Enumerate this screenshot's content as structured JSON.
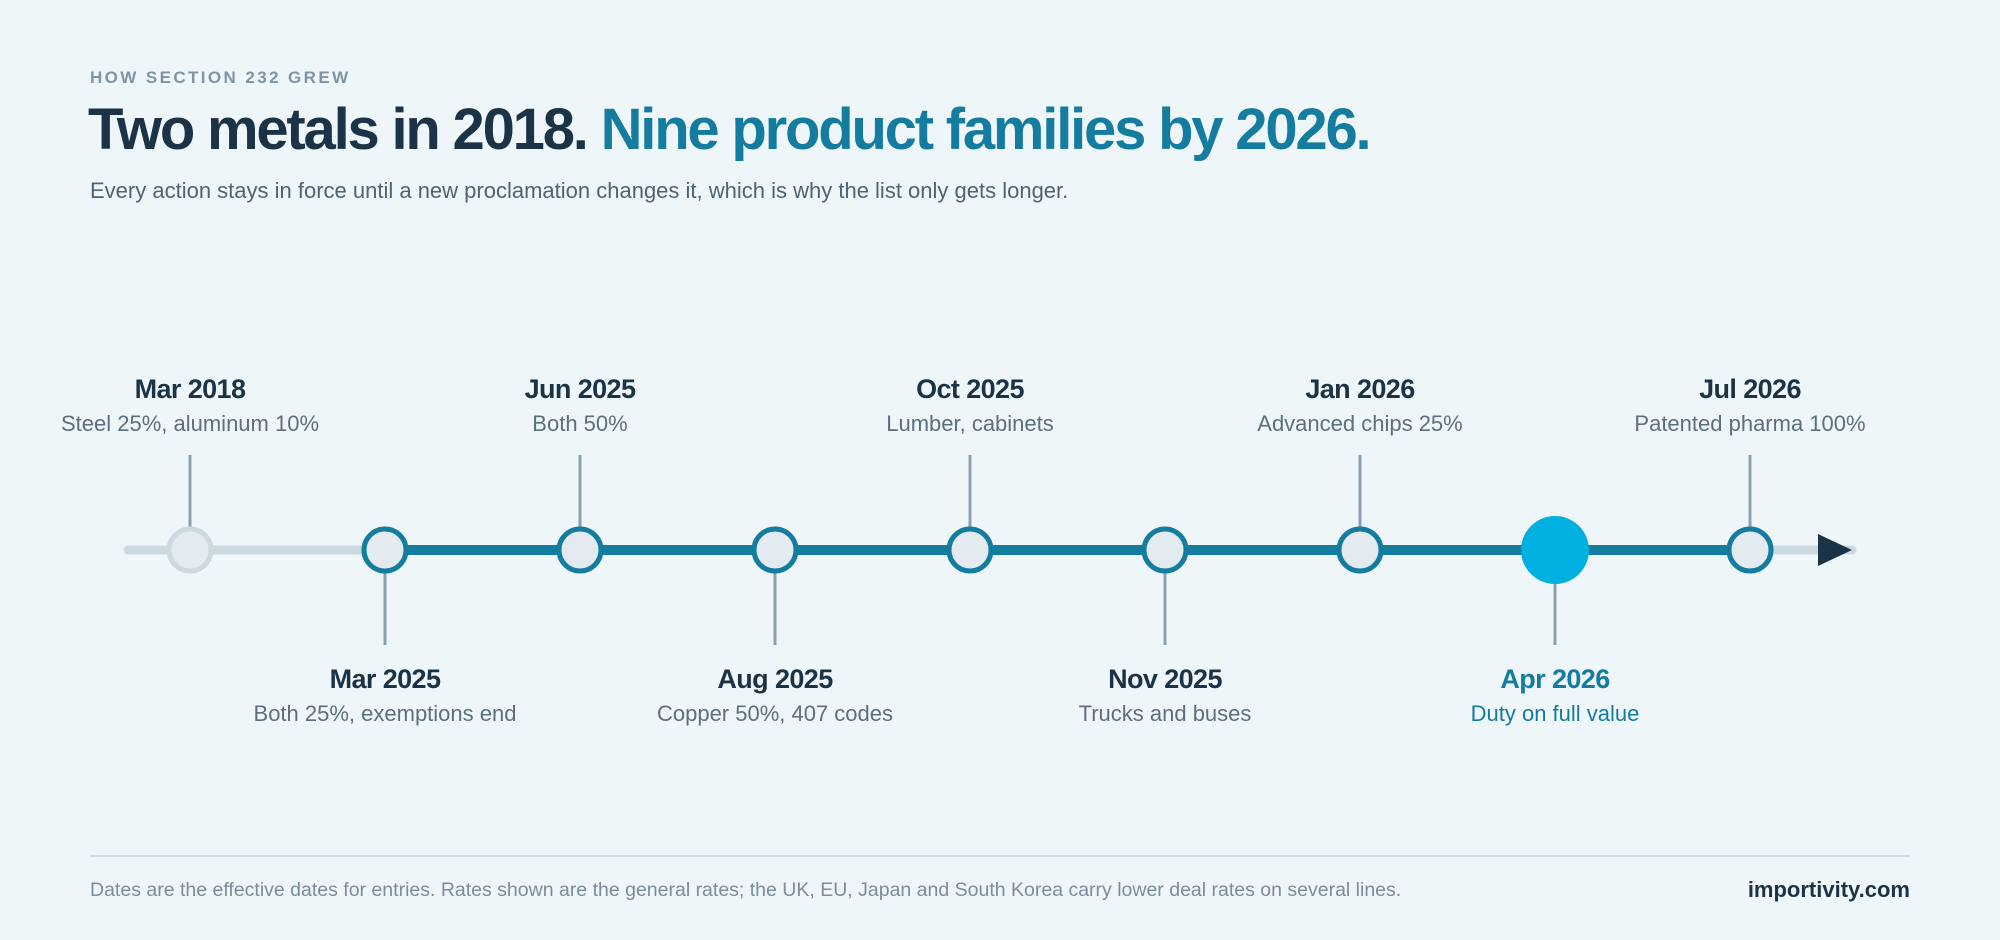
{
  "header": {
    "eyebrow": "HOW SECTION 232 GREW",
    "title_part1": "Two metals in 2018.",
    "title_part2": "Nine product families by 2026.",
    "subtitle": "Every action stays in force until a new proclamation changes it, which is why the list only gets longer."
  },
  "timeline": {
    "events": [
      {
        "date": "Mar 2018",
        "desc": "Steel 25%, aluminum 10%",
        "placement": "above",
        "state": "past"
      },
      {
        "date": "Mar 2025",
        "desc": "Both 25%, exemptions end",
        "placement": "below",
        "state": "active"
      },
      {
        "date": "Jun 2025",
        "desc": "Both 50%",
        "placement": "above",
        "state": "active"
      },
      {
        "date": "Aug 2025",
        "desc": "Copper 50%, 407 codes",
        "placement": "below",
        "state": "active"
      },
      {
        "date": "Oct 2025",
        "desc": "Lumber, cabinets",
        "placement": "above",
        "state": "active"
      },
      {
        "date": "Nov 2025",
        "desc": "Trucks and buses",
        "placement": "below",
        "state": "active"
      },
      {
        "date": "Jan 2026",
        "desc": "Advanced chips 25%",
        "placement": "above",
        "state": "active"
      },
      {
        "date": "Apr 2026",
        "desc": "Duty on full value",
        "placement": "below",
        "state": "highlight"
      },
      {
        "date": "Jul 2026",
        "desc": "Patented pharma 100%",
        "placement": "above",
        "state": "active"
      }
    ]
  },
  "colors": {
    "inactive_track": "#cdd9e0",
    "active_track": "#147c9f",
    "node_fill": "#e3eaf0",
    "highlight_node": "#00b0e0",
    "stem": "#8aa0af",
    "arrow": "#1b3347"
  },
  "footer": {
    "note": "Dates are the effective dates for entries. Rates shown are the general rates; the UK, EU, Japan and South Korea carry lower deal rates on several lines.",
    "brand": "importivity.com"
  }
}
